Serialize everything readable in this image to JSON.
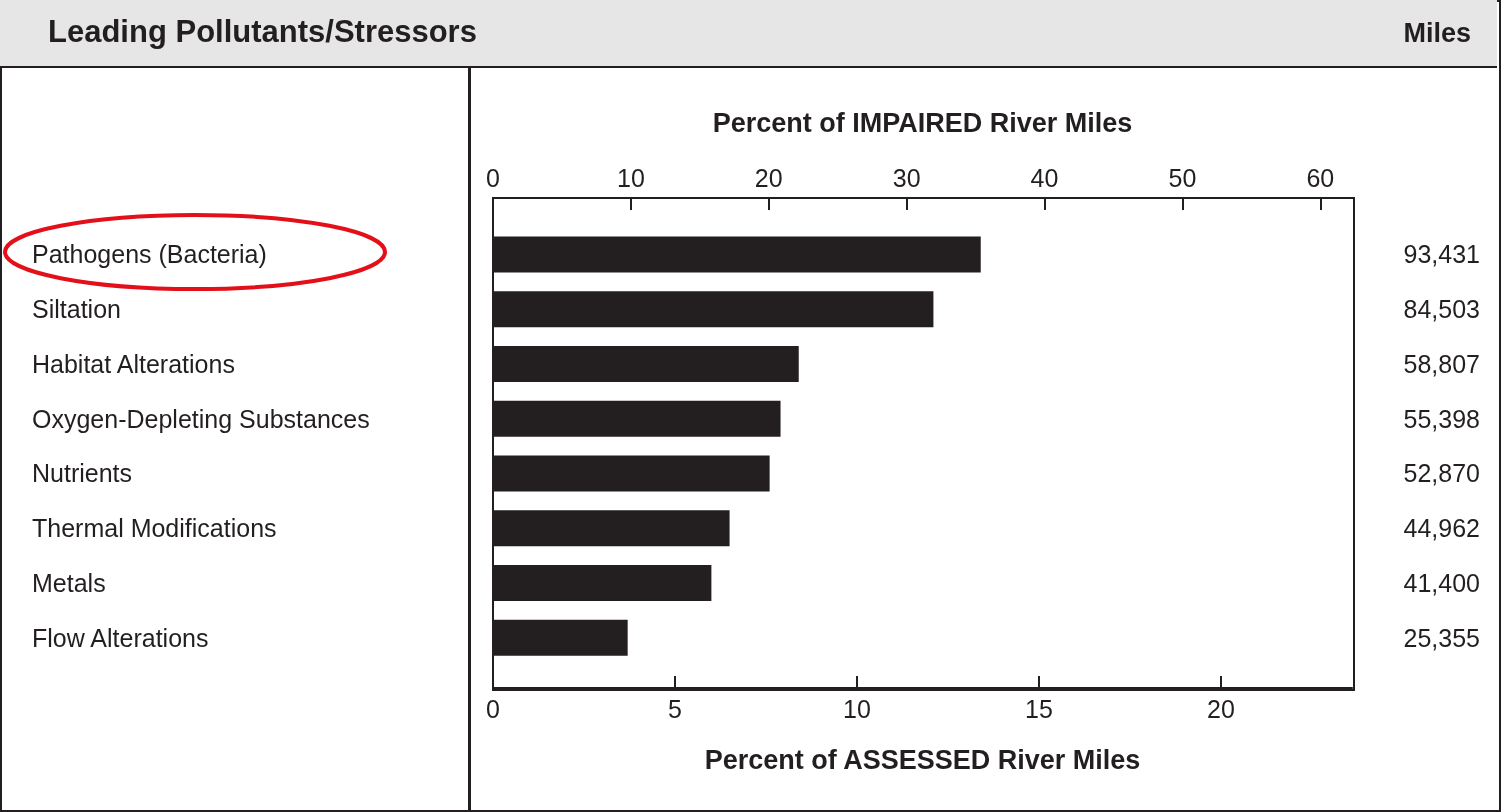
{
  "chart_data": {
    "type": "bar",
    "orientation": "horizontal",
    "title": "Leading Pollutants/Stressors",
    "annotations": [
      "Miles",
      "93,431",
      "84,503",
      "58,807",
      "55,398",
      "52,870",
      "44,962",
      "41,400",
      "25,355"
    ],
    "categories": [
      "Pathogens (Bacteria)",
      "Siltation",
      "Habitat Alterations",
      "Oxygen-Depleting Substances",
      "Nutrients",
      "Thermal Modifications",
      "Metals",
      "Flow Alterations"
    ],
    "values": [
      13.4,
      12.1,
      8.4,
      7.9,
      7.6,
      6.5,
      6.0,
      3.7
    ],
    "color": "#231f20",
    "xlabel": "Percent of ASSESSED River Miles",
    "xlim": [
      0,
      23.6
    ],
    "xticks": [
      0,
      5,
      10,
      15,
      20
    ],
    "x2label": "Percent of IMPAIRED River Miles",
    "x2lim": [
      0,
      62.3
    ],
    "x2ticks": [
      0,
      10,
      20,
      30,
      40,
      50,
      60
    ],
    "grid": false
  }
}
